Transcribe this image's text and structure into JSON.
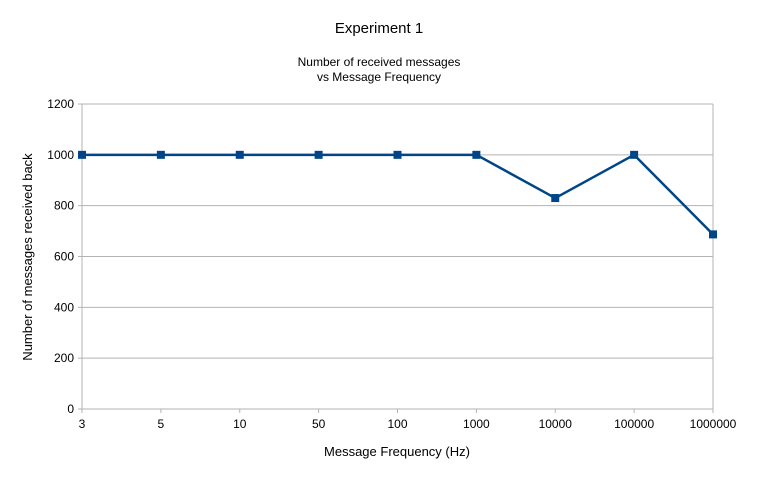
{
  "chart_data": {
    "type": "line",
    "title": "Experiment 1",
    "subtitle_lines": [
      "Number of received messages",
      "vs Message Frequency"
    ],
    "xlabel": "Message Frequency (Hz)",
    "ylabel": "Number of messages received back",
    "categories": [
      "3",
      "5",
      "10",
      "50",
      "100",
      "1000",
      "10000",
      "100000",
      "1000000"
    ],
    "series": [
      {
        "values": [
          1000,
          1000,
          1000,
          1000,
          1000,
          1000,
          830,
          1000,
          687
        ],
        "color": "#004586"
      }
    ],
    "ylim": [
      0,
      1200
    ],
    "yticks": [
      0,
      200,
      400,
      600,
      800,
      1000,
      1200
    ],
    "grid": true,
    "legend": "none",
    "gridColor": "#b3b3b3",
    "marker": "square"
  }
}
